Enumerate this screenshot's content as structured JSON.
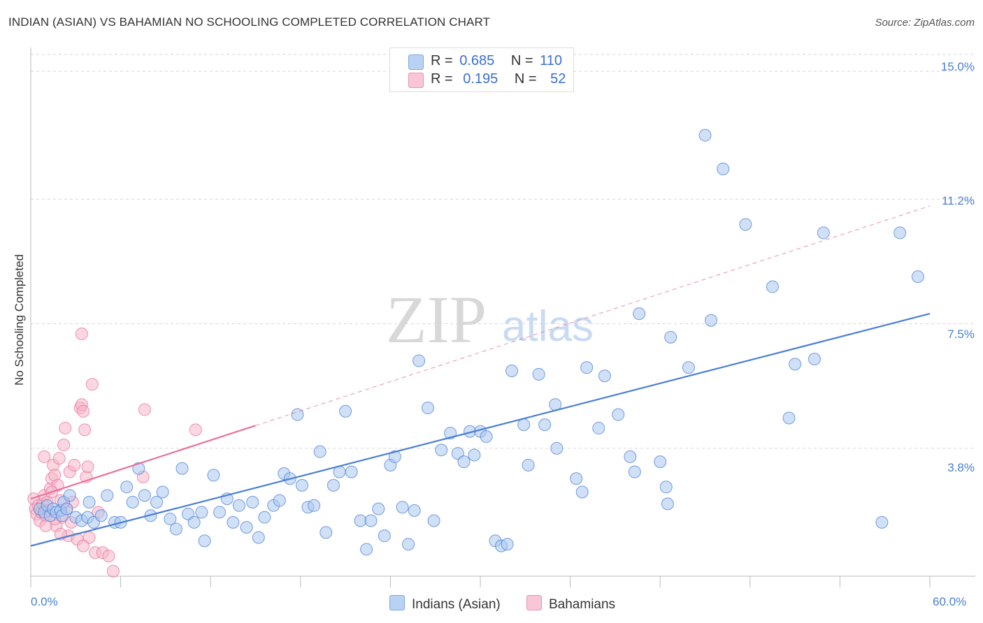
{
  "title": "INDIAN (ASIAN) VS BAHAMIAN NO SCHOOLING COMPLETED CORRELATION CHART",
  "source": "Source: ZipAtlas.com",
  "watermark": {
    "zip": "ZIP",
    "atlas": "atlas"
  },
  "colors": {
    "blue": "#4a7fd4",
    "blue_fill": "#a9c7f0",
    "pink": "#e8719a",
    "pink_fill": "#f5b6c9",
    "grid": "#d6d6d6"
  },
  "legend": {
    "rows": [
      {
        "r_label": "R =",
        "r_value": "0.685",
        "n_label": "N =",
        "n_value": "110"
      },
      {
        "r_label": "R =",
        "r_value": "0.195",
        "n_label": "N =",
        "n_value": "52"
      }
    ]
  },
  "bottom_legend": {
    "series1": "Indians (Asian)",
    "series2": "Bahamians"
  },
  "axis": {
    "ylabel": "No Schooling Completed",
    "y_ticks": [
      "15.0%",
      "11.2%",
      "7.5%",
      "3.8%"
    ],
    "x_min_label": "0.0%",
    "x_max_label": "60.0%"
  },
  "chart_data": {
    "type": "scatter",
    "xlabel": "",
    "ylabel": "No Schooling Completed",
    "xlim": [
      0,
      60
    ],
    "ylim": [
      0,
      15.5
    ],
    "y_tick_values": [
      3.8,
      7.5,
      11.2,
      15.0
    ],
    "series": [
      {
        "name": "Indians (Asian)",
        "r": 0.685,
        "n": 110,
        "trend": {
          "x": [
            0,
            60
          ],
          "y": [
            0.9,
            7.8
          ],
          "style": "solid"
        },
        "points": [
          [
            0.6,
            2.0
          ],
          [
            0.9,
            1.9
          ],
          [
            1.1,
            2.1
          ],
          [
            1.3,
            1.8
          ],
          [
            1.5,
            2.0
          ],
          [
            1.7,
            1.9
          ],
          [
            2.0,
            1.95
          ],
          [
            2.2,
            2.2
          ],
          [
            2.1,
            1.8
          ],
          [
            2.4,
            2.0
          ],
          [
            2.6,
            2.4
          ],
          [
            3.0,
            1.75
          ],
          [
            3.4,
            1.65
          ],
          [
            3.9,
            2.2
          ],
          [
            3.8,
            1.75
          ],
          [
            4.2,
            1.6
          ],
          [
            4.7,
            1.8
          ],
          [
            5.1,
            2.4
          ],
          [
            5.6,
            1.6
          ],
          [
            6.0,
            1.6
          ],
          [
            6.4,
            2.65
          ],
          [
            6.8,
            2.2
          ],
          [
            7.2,
            3.2
          ],
          [
            7.6,
            2.4
          ],
          [
            8.0,
            1.8
          ],
          [
            8.4,
            2.2
          ],
          [
            8.8,
            2.5
          ],
          [
            9.3,
            1.7
          ],
          [
            9.7,
            1.4
          ],
          [
            10.1,
            3.2
          ],
          [
            10.5,
            1.85
          ],
          [
            10.9,
            1.6
          ],
          [
            11.4,
            1.9
          ],
          [
            11.6,
            1.05
          ],
          [
            12.2,
            3.0
          ],
          [
            12.6,
            1.9
          ],
          [
            13.1,
            2.3
          ],
          [
            13.5,
            1.6
          ],
          [
            13.9,
            2.1
          ],
          [
            14.4,
            1.45
          ],
          [
            14.8,
            2.2
          ],
          [
            15.2,
            1.15
          ],
          [
            15.6,
            1.75
          ],
          [
            16.2,
            2.1
          ],
          [
            16.6,
            2.25
          ],
          [
            16.9,
            3.05
          ],
          [
            17.3,
            2.9
          ],
          [
            17.8,
            4.8
          ],
          [
            18.1,
            2.7
          ],
          [
            18.5,
            2.05
          ],
          [
            18.9,
            2.1
          ],
          [
            19.3,
            3.7
          ],
          [
            19.7,
            1.3
          ],
          [
            20.2,
            2.7
          ],
          [
            20.6,
            3.1
          ],
          [
            21.0,
            4.9
          ],
          [
            21.4,
            3.1
          ],
          [
            22.0,
            1.65
          ],
          [
            22.4,
            0.8
          ],
          [
            22.7,
            1.65
          ],
          [
            23.2,
            2.0
          ],
          [
            23.6,
            1.2
          ],
          [
            24.0,
            3.3
          ],
          [
            24.3,
            3.55
          ],
          [
            24.8,
            2.05
          ],
          [
            25.2,
            0.95
          ],
          [
            25.6,
            1.95
          ],
          [
            25.9,
            6.4
          ],
          [
            26.5,
            5.0
          ],
          [
            26.9,
            1.65
          ],
          [
            27.4,
            3.75
          ],
          [
            28.0,
            4.25
          ],
          [
            28.5,
            3.65
          ],
          [
            28.9,
            3.4
          ],
          [
            29.3,
            4.3
          ],
          [
            29.6,
            3.6
          ],
          [
            30.0,
            4.3
          ],
          [
            30.4,
            4.15
          ],
          [
            31.0,
            1.05
          ],
          [
            31.4,
            0.9
          ],
          [
            31.8,
            0.95
          ],
          [
            32.1,
            6.1
          ],
          [
            32.9,
            4.5
          ],
          [
            33.2,
            3.3
          ],
          [
            33.9,
            6.0
          ],
          [
            34.3,
            4.5
          ],
          [
            35.0,
            5.1
          ],
          [
            35.1,
            3.8
          ],
          [
            36.4,
            2.9
          ],
          [
            36.8,
            2.5
          ],
          [
            37.1,
            6.2
          ],
          [
            37.9,
            4.4
          ],
          [
            38.3,
            5.95
          ],
          [
            39.2,
            4.8
          ],
          [
            40.0,
            3.55
          ],
          [
            40.3,
            3.1
          ],
          [
            40.6,
            7.8
          ],
          [
            42.0,
            3.4
          ],
          [
            42.4,
            2.65
          ],
          [
            42.5,
            2.15
          ],
          [
            42.7,
            7.1
          ],
          [
            43.9,
            6.2
          ],
          [
            45.0,
            13.1
          ],
          [
            45.4,
            7.6
          ],
          [
            46.2,
            12.1
          ],
          [
            47.7,
            10.45
          ],
          [
            49.5,
            8.6
          ],
          [
            50.6,
            4.7
          ],
          [
            51.0,
            6.3
          ],
          [
            52.3,
            6.45
          ],
          [
            52.9,
            10.2
          ],
          [
            56.8,
            1.6
          ],
          [
            58.0,
            10.2
          ],
          [
            59.2,
            8.9
          ]
        ]
      },
      {
        "name": "Bahamians",
        "r": 0.195,
        "n": 52,
        "trend": {
          "x": [
            0,
            60
          ],
          "y": [
            2.3,
            11.0
          ],
          "solid_until": 15.0,
          "style": "solid-then-dashed"
        },
        "points": [
          [
            0.2,
            2.3
          ],
          [
            0.3,
            2.0
          ],
          [
            0.4,
            1.85
          ],
          [
            0.5,
            2.1
          ],
          [
            0.6,
            1.65
          ],
          [
            0.7,
            1.9
          ],
          [
            0.8,
            2.15
          ],
          [
            0.9,
            2.4
          ],
          [
            1.0,
            1.8
          ],
          [
            1.1,
            2.2
          ],
          [
            1.2,
            1.95
          ],
          [
            1.3,
            2.6
          ],
          [
            1.4,
            2.9
          ],
          [
            1.5,
            3.3
          ],
          [
            1.6,
            3.0
          ],
          [
            1.7,
            1.5
          ],
          [
            1.8,
            2.7
          ],
          [
            1.9,
            3.5
          ],
          [
            2.0,
            2.25
          ],
          [
            2.1,
            1.75
          ],
          [
            2.2,
            3.9
          ],
          [
            2.3,
            4.4
          ],
          [
            2.4,
            2.0
          ],
          [
            2.5,
            1.2
          ],
          [
            2.6,
            3.1
          ],
          [
            2.7,
            1.6
          ],
          [
            2.8,
            2.2
          ],
          [
            2.9,
            3.3
          ],
          [
            3.1,
            1.1
          ],
          [
            3.3,
            5.0
          ],
          [
            3.4,
            5.1
          ],
          [
            3.5,
            4.9
          ],
          [
            3.6,
            4.35
          ],
          [
            3.7,
            2.95
          ],
          [
            3.8,
            3.25
          ],
          [
            3.9,
            1.15
          ],
          [
            4.1,
            5.7
          ],
          [
            3.4,
            7.2
          ],
          [
            4.3,
            0.7
          ],
          [
            4.5,
            1.9
          ],
          [
            4.8,
            0.7
          ],
          [
            5.2,
            0.6
          ],
          [
            5.5,
            0.15
          ],
          [
            7.5,
            2.95
          ],
          [
            7.6,
            4.95
          ],
          [
            11.0,
            4.35
          ],
          [
            1.0,
            1.5
          ],
          [
            1.4,
            2.5
          ],
          [
            2.0,
            1.25
          ],
          [
            3.5,
            0.9
          ],
          [
            0.9,
            3.55
          ],
          [
            1.6,
            1.7
          ]
        ]
      }
    ]
  }
}
